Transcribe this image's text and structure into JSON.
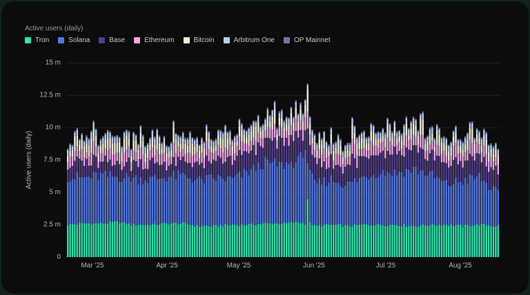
{
  "chart_data": {
    "type": "bar",
    "stacked": true,
    "title": "Active users (daily)",
    "xlabel": "",
    "ylabel": "Active users (daily)",
    "ylim": [
      0,
      15
    ],
    "y_unit": "m",
    "y_ticks": [
      {
        "v": 0,
        "label": "0"
      },
      {
        "v": 2.5,
        "label": "2.5 m"
      },
      {
        "v": 5,
        "label": "5 m"
      },
      {
        "v": 7.5,
        "label": "7.5 m"
      },
      {
        "v": 10,
        "label": "10 m"
      },
      {
        "v": 12.5,
        "label": "12.5 m"
      },
      {
        "v": 15,
        "label": "15 m"
      }
    ],
    "x_ticks": [
      {
        "i": 7,
        "label": "Mar '25"
      },
      {
        "i": 38,
        "label": "Apr '25"
      },
      {
        "i": 68,
        "label": "May '25"
      },
      {
        "i": 99,
        "label": "Jun '25"
      },
      {
        "i": 129,
        "label": "Jul '25"
      },
      {
        "i": 160,
        "label": "Aug '25"
      }
    ],
    "x_start": "2025-02-22",
    "days": 184,
    "grid": true,
    "legend_position": "top-left",
    "series": [
      {
        "name": "Tron",
        "color": "#2ee6b0"
      },
      {
        "name": "Solana",
        "color": "#5577e0"
      },
      {
        "name": "Base",
        "color": "#523f86"
      },
      {
        "name": "Ethereum",
        "color": "#f1a6ea"
      },
      {
        "name": "Bitcoin",
        "color": "#f3efdc"
      },
      {
        "name": "Arbitrum One",
        "color": "#bcd0f7"
      },
      {
        "name": "OP Mainnet",
        "color": "#6d7a9c"
      }
    ],
    "anchors": {
      "tron": [
        [
          0,
          2.5
        ],
        [
          7,
          2.6
        ],
        [
          14,
          2.6
        ],
        [
          21,
          2.7
        ],
        [
          28,
          2.5
        ],
        [
          35,
          2.5
        ],
        [
          42,
          2.6
        ],
        [
          49,
          2.6
        ],
        [
          56,
          2.4
        ],
        [
          63,
          2.4
        ],
        [
          70,
          2.5
        ],
        [
          77,
          2.5
        ],
        [
          84,
          2.6
        ],
        [
          91,
          2.6
        ],
        [
          98,
          2.7
        ],
        [
          101,
          2.6
        ],
        [
          102,
          4.5
        ],
        [
          103,
          2.6
        ],
        [
          105,
          2.4
        ],
        [
          112,
          2.5
        ],
        [
          119,
          2.4
        ],
        [
          126,
          2.5
        ],
        [
          133,
          2.5
        ],
        [
          140,
          2.5
        ],
        [
          147,
          2.4
        ],
        [
          154,
          2.5
        ],
        [
          161,
          2.5
        ],
        [
          168,
          2.4
        ],
        [
          175,
          2.5
        ],
        [
          183,
          2.4
        ]
      ],
      "solana": [
        [
          0,
          6.2
        ],
        [
          7,
          6.1
        ],
        [
          14,
          6.3
        ],
        [
          21,
          6.2
        ],
        [
          28,
          6.1
        ],
        [
          35,
          6.0
        ],
        [
          42,
          6.2
        ],
        [
          49,
          6.3
        ],
        [
          56,
          5.9
        ],
        [
          63,
          6.1
        ],
        [
          70,
          6.0
        ],
        [
          77,
          6.6
        ],
        [
          84,
          7.3
        ],
        [
          91,
          7.1
        ],
        [
          98,
          7.4
        ],
        [
          101,
          8.4
        ],
        [
          103,
          6.4
        ],
        [
          105,
          5.6
        ],
        [
          112,
          6.0
        ],
        [
          119,
          5.6
        ],
        [
          126,
          6.2
        ],
        [
          133,
          6.6
        ],
        [
          140,
          6.5
        ],
        [
          147,
          6.8
        ],
        [
          154,
          6.4
        ],
        [
          161,
          5.6
        ],
        [
          168,
          5.9
        ],
        [
          175,
          6.2
        ],
        [
          183,
          4.8
        ]
      ],
      "base": [
        [
          0,
          1.0
        ],
        [
          30,
          1.0
        ],
        [
          60,
          1.0
        ],
        [
          80,
          1.4
        ],
        [
          95,
          1.6
        ],
        [
          102,
          1.5
        ],
        [
          110,
          1.2
        ],
        [
          130,
          1.3
        ],
        [
          150,
          1.3
        ],
        [
          170,
          1.4
        ],
        [
          183,
          1.4
        ]
      ],
      "ethereum": [
        [
          0,
          0.5
        ],
        [
          183,
          0.5
        ]
      ],
      "bitcoin": [
        [
          0,
          0.4
        ],
        [
          183,
          0.4
        ]
      ],
      "arbitrum": [
        [
          0,
          0.3
        ],
        [
          183,
          0.3
        ]
      ],
      "op": [
        [
          0,
          0.1
        ],
        [
          183,
          0.1
        ]
      ]
    },
    "peaks": [
      {
        "i": 102,
        "total": 13.4
      },
      {
        "i": 97,
        "total": 12.1
      },
      {
        "i": 91,
        "total": 11.4
      },
      {
        "i": 121,
        "total": 10.8
      }
    ]
  },
  "header": {
    "title": "Active users (daily)"
  },
  "legend": {
    "items": [
      {
        "label": "Tron",
        "color": "#2ee6b0"
      },
      {
        "label": "Solana",
        "color": "#5577e0"
      },
      {
        "label": "Base",
        "color": "#523f86"
      },
      {
        "label": "Ethereum",
        "color": "#f1a6ea"
      },
      {
        "label": "Bitcoin",
        "color": "#f3efdc"
      },
      {
        "label": "Arbitrum One",
        "color": "#bcd0f7"
      },
      {
        "label": "OP Mainnet",
        "color": "#6d7a9c"
      }
    ]
  },
  "axes": {
    "ylabel": "Active users (daily)",
    "yticks": [
      "0",
      "2.5 m",
      "5 m",
      "7.5 m",
      "10 m",
      "12.5 m",
      "15 m"
    ],
    "xticks": [
      "Mar '25",
      "Apr '25",
      "May '25",
      "Jun '25",
      "Jul '25",
      "Aug '25"
    ]
  }
}
